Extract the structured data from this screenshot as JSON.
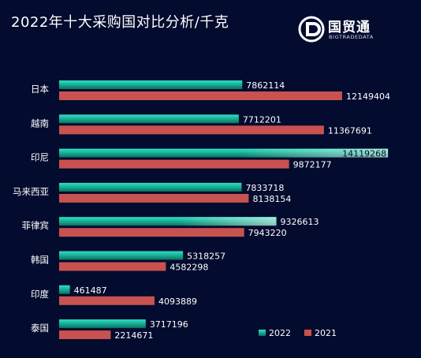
{
  "header": {
    "title": "2022年十大采购国对比分析/千克",
    "logo_name": "国贸通",
    "logo_sub": "BIGTRADEDATA"
  },
  "colors": {
    "background": "#030b2e",
    "series_2022": "#1ec4aa",
    "series_2021": "#c8524f",
    "text": "#ffffff"
  },
  "chart_data": {
    "type": "bar",
    "orientation": "horizontal",
    "title": "2022年十大采购国对比分析/千克",
    "categories": [
      "日本",
      "越南",
      "印尼",
      "马来西亚",
      "菲律宾",
      "韩国",
      "印度",
      "泰国"
    ],
    "series": [
      {
        "name": "2022",
        "values": [
          7862114,
          7712201,
          14119268,
          7833718,
          9326613,
          5318257,
          461487,
          3717196
        ]
      },
      {
        "name": "2021",
        "values": [
          12149404,
          11367691,
          9872177,
          8138154,
          7943220,
          4582298,
          4093889,
          2214671
        ]
      }
    ],
    "xlim": [
      0,
      15400000
    ],
    "grid": false,
    "legend": "bottom-right"
  }
}
